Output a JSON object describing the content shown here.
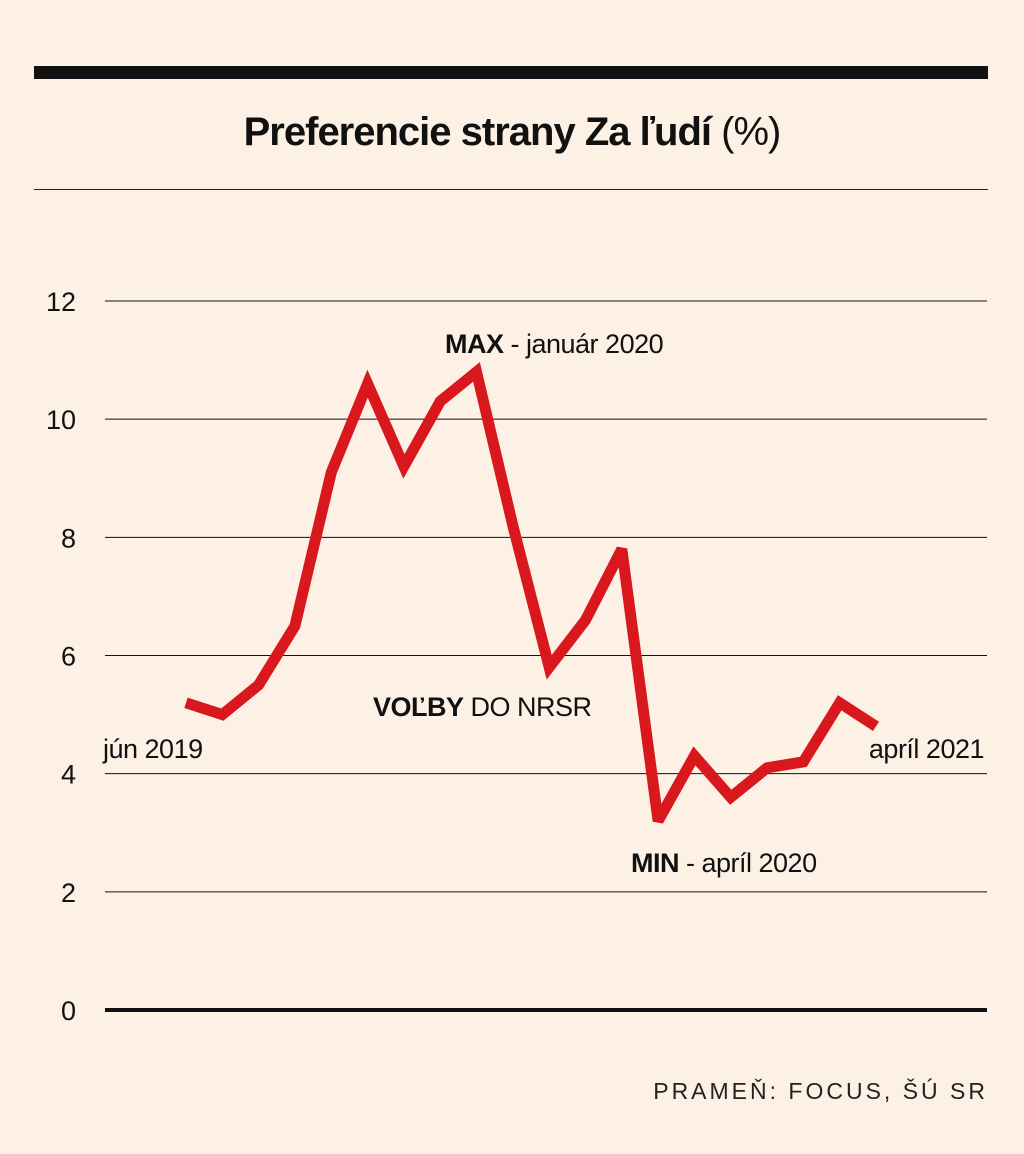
{
  "chart_data": {
    "type": "line",
    "title": "Preferencie strany Za ľudí",
    "title_unit": "(%)",
    "ylim": [
      0,
      12
    ],
    "yticks": [
      "0",
      "2",
      "4",
      "6",
      "8",
      "10",
      "12"
    ],
    "series": [
      {
        "name": "Za ľudí",
        "color": "#d9181d",
        "values": [
          5.2,
          5.0,
          5.5,
          6.5,
          9.1,
          10.6,
          9.2,
          10.3,
          10.8,
          8.2,
          5.8,
          6.6,
          7.8,
          3.2,
          4.3,
          3.6,
          4.1,
          4.2,
          5.2,
          4.8
        ]
      }
    ],
    "annotations": {
      "start": "jún 2019",
      "end": "apríl 2021",
      "max_bold": "MAX",
      "max_rest": " - január 2020",
      "min_bold": "MIN",
      "min_rest": " - apríl 2020",
      "elections_bold": "VOĽBY",
      "elections_rest": " DO NRSR"
    },
    "source": "PRAMEŇ: FOCUS, ŠÚ SR"
  }
}
